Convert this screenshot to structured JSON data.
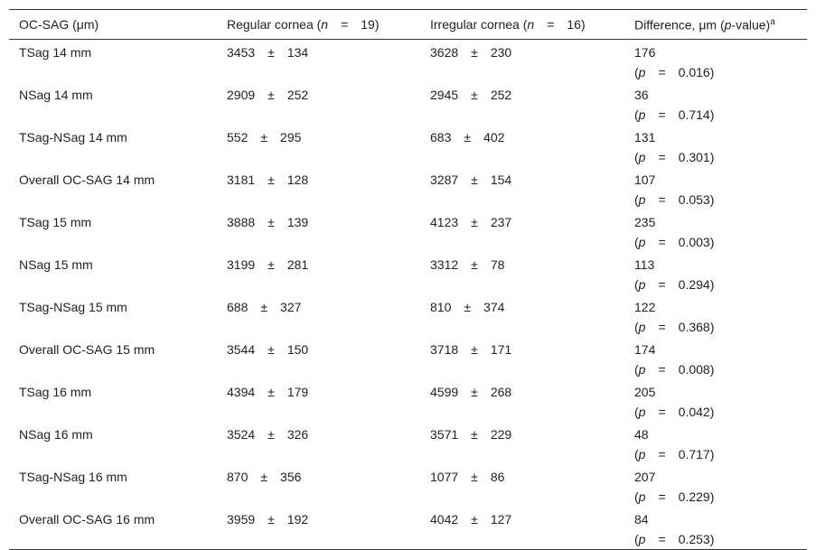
{
  "header": {
    "cells": [
      [
        "OC-SAG (μm)"
      ],
      [
        "Regular cornea (",
        "n",
        "=",
        "19)"
      ],
      [
        "Irregular cornea (",
        "n",
        "=",
        "16)"
      ],
      [
        "Difference, μm (",
        "p",
        "-value)",
        "a"
      ]
    ]
  },
  "symbols": {
    "plus_minus": "±",
    "open": "(",
    "p": "p",
    "equals": "=",
    "close": ")"
  },
  "table": {
    "rows": [
      {
        "measure": "TSag 14 mm",
        "regular": [
          3453,
          134
        ],
        "irregular": [
          3628,
          230
        ],
        "difference": 176,
        "p_value": 0.016
      },
      {
        "measure": "NSag 14 mm",
        "regular": [
          2909,
          252
        ],
        "irregular": [
          2945,
          252
        ],
        "difference": 36,
        "p_value": 0.714
      },
      {
        "measure": "TSag-NSag 14 mm",
        "regular": [
          552,
          295
        ],
        "irregular": [
          683,
          402
        ],
        "difference": 131,
        "p_value": 0.301
      },
      {
        "measure": "Overall OC-SAG 14 mm",
        "regular": [
          3181,
          128
        ],
        "irregular": [
          3287,
          154
        ],
        "difference": 107,
        "p_value": 0.053
      },
      {
        "measure": "TSag 15 mm",
        "regular": [
          3888,
          139
        ],
        "irregular": [
          4123,
          237
        ],
        "difference": 235,
        "p_value": 0.003
      },
      {
        "measure": "NSag 15 mm",
        "regular": [
          3199,
          281
        ],
        "irregular": [
          3312,
          78
        ],
        "difference": 113,
        "p_value": 0.294
      },
      {
        "measure": "TSag-NSag 15 mm",
        "regular": [
          688,
          327
        ],
        "irregular": [
          810,
          374
        ],
        "difference": 122,
        "p_value": 0.368
      },
      {
        "measure": "Overall OC-SAG 15 mm",
        "regular": [
          3544,
          150
        ],
        "irregular": [
          3718,
          171
        ],
        "difference": 174,
        "p_value": 0.008
      },
      {
        "measure": "TSag 16 mm",
        "regular": [
          4394,
          179
        ],
        "irregular": [
          4599,
          268
        ],
        "difference": 205,
        "p_value": 0.042
      },
      {
        "measure": "NSag 16 mm",
        "regular": [
          3524,
          326
        ],
        "irregular": [
          3571,
          229
        ],
        "difference": 48,
        "p_value": 0.717
      },
      {
        "measure": "TSag-NSag 16 mm",
        "regular": [
          870,
          356
        ],
        "irregular": [
          1077,
          86
        ],
        "difference": 207,
        "p_value": 0.229
      },
      {
        "measure": "Overall OC-SAG 16 mm",
        "regular": [
          3959,
          192
        ],
        "irregular": [
          4042,
          127
        ],
        "difference": 84,
        "p_value": 0.253
      }
    ]
  }
}
